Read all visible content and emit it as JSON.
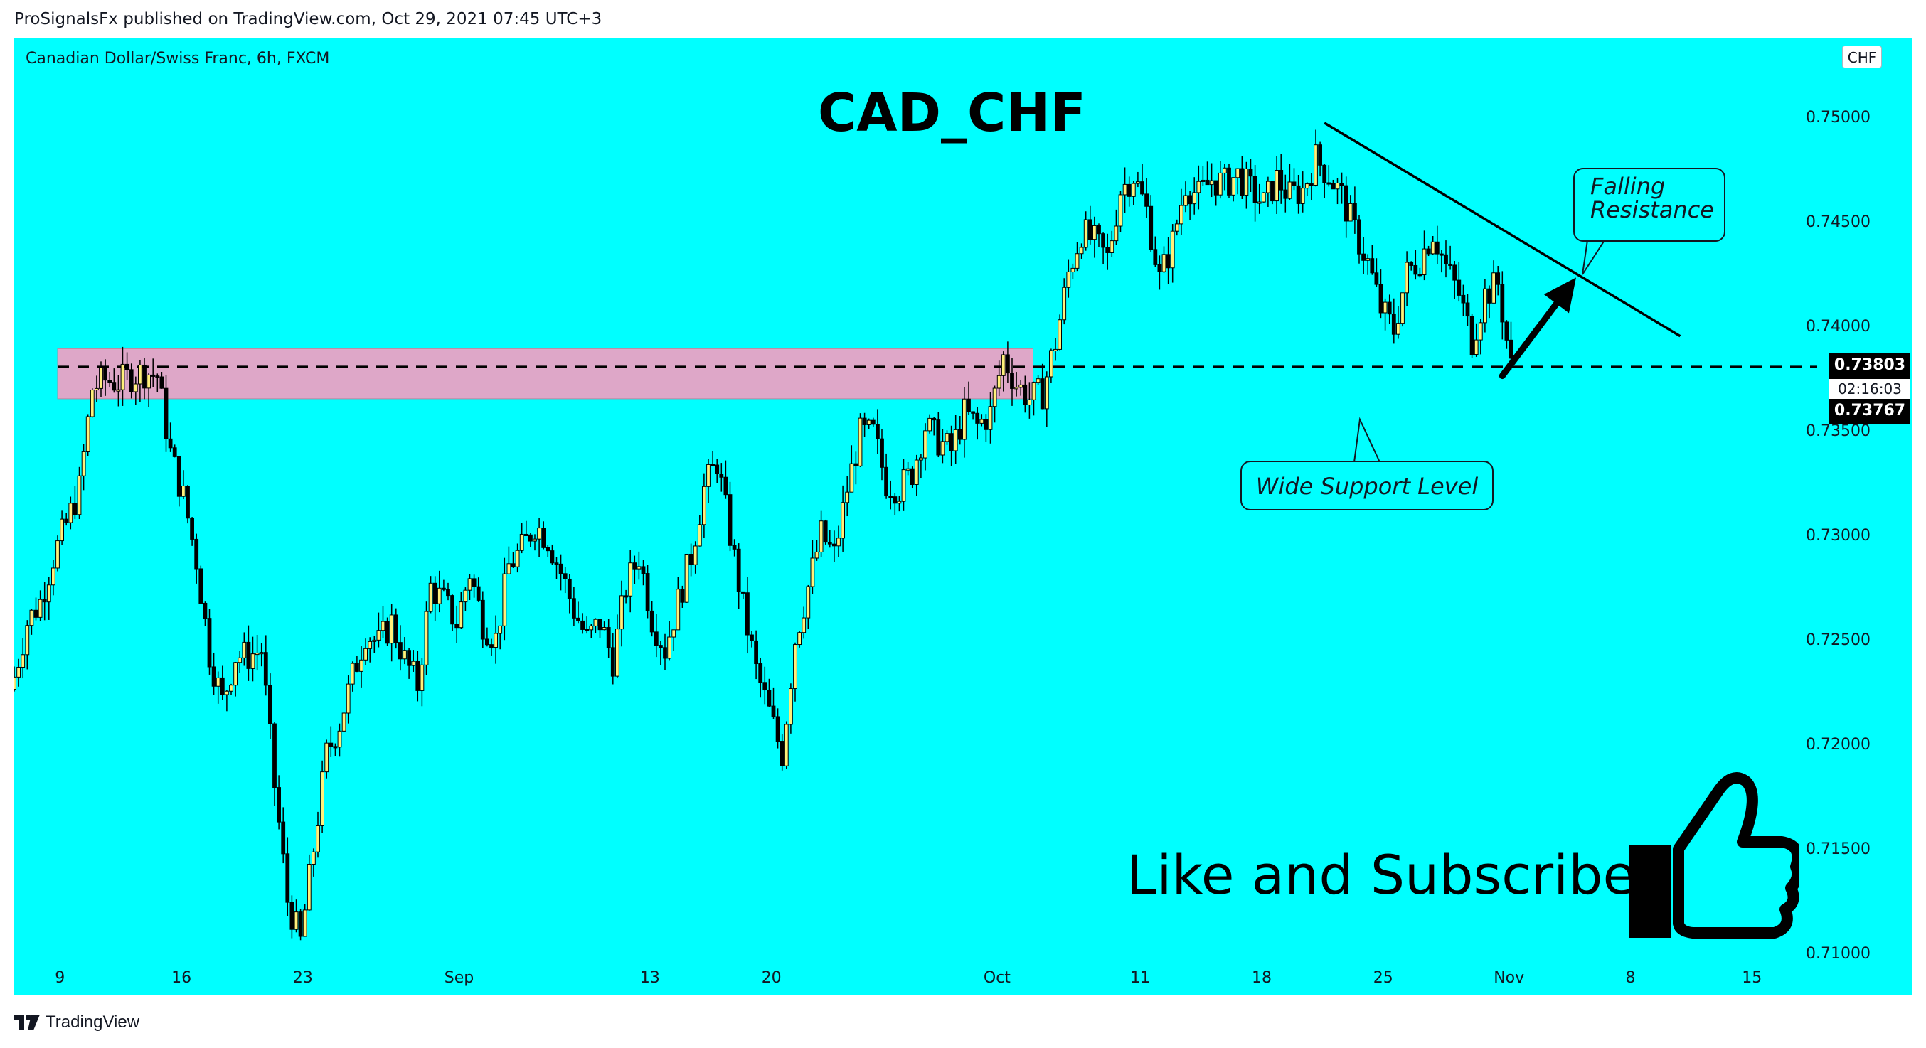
{
  "header": {
    "published": "ProSignalsFx published on TradingView.com, Oct 29, 2021 07:45 UTC+3"
  },
  "chart_header": {
    "symbol": "Canadian Dollar/Swiss Franc, 6h, FXCM",
    "currency": "CHF"
  },
  "annotations": {
    "title": "CAD_CHF",
    "falling_resistance_line1": "Falling",
    "falling_resistance_line2": "Resistance",
    "wide_support": "Wide Support Level",
    "like_subscribe": "Like and Subscribe"
  },
  "price_tags": {
    "last_price": "0.73803",
    "countdown": "02:16:03",
    "other_price": "0.73767"
  },
  "footer": {
    "brand": "TradingView"
  },
  "colors": {
    "background": "#00ffff",
    "bull_candle": "#fff07a",
    "bear_candle": "#000000",
    "wick": "#000000",
    "support_zone": "#dea7c8"
  },
  "chart_data": {
    "type": "candlestick",
    "title": "CAD_CHF",
    "symbol": "Canadian Dollar/Swiss Franc, 6h, FXCM",
    "y_axis": {
      "ticks": [
        "0.75000",
        "0.74500",
        "0.74000",
        "0.73500",
        "0.73000",
        "0.72500",
        "0.72000",
        "0.71500",
        "0.71000"
      ],
      "range": [
        0.7095,
        0.7505
      ]
    },
    "x_axis": {
      "ticks": [
        {
          "label": "9",
          "bar": 3
        },
        {
          "label": "16",
          "bar": 31
        },
        {
          "label": "23",
          "bar": 59
        },
        {
          "label": "Sep",
          "bar": 95
        },
        {
          "label": "13",
          "bar": 139
        },
        {
          "label": "20",
          "bar": 167
        },
        {
          "label": "Oct",
          "bar": 219
        },
        {
          "label": "11",
          "bar": 252
        },
        {
          "label": "18",
          "bar": 280
        },
        {
          "label": "25",
          "bar": 308
        },
        {
          "label": "Nov",
          "bar": 337
        },
        {
          "label": "8",
          "bar": 365
        },
        {
          "label": "15",
          "bar": 393
        }
      ]
    },
    "support_zone": {
      "low": 0.7365,
      "high": 0.7389,
      "label": "Wide Support Level"
    },
    "resistance_line": {
      "from": {
        "bar": 302,
        "price": 0.7497
      },
      "to": {
        "bar": 384,
        "price": 0.7395
      },
      "label": "Falling Resistance"
    },
    "dashed_level": 0.73803,
    "arrow": {
      "from": {
        "bar": 343,
        "price": 0.7376
      },
      "to": {
        "bar": 360,
        "price": 0.7423
      }
    },
    "last_price": 0.73803,
    "close_path": [
      [
        0,
        0.7232
      ],
      [
        3,
        0.7258
      ],
      [
        6,
        0.7268
      ],
      [
        9,
        0.7289
      ],
      [
        12,
        0.7305
      ],
      [
        15,
        0.7322
      ],
      [
        18,
        0.737
      ],
      [
        21,
        0.7374
      ],
      [
        24,
        0.7373
      ],
      [
        27,
        0.7376
      ],
      [
        30,
        0.7378
      ],
      [
        33,
        0.7376
      ],
      [
        36,
        0.7339
      ],
      [
        39,
        0.7318
      ],
      [
        42,
        0.7288
      ],
      [
        45,
        0.7243
      ],
      [
        48,
        0.722
      ],
      [
        51,
        0.7242
      ],
      [
        54,
        0.7242
      ],
      [
        57,
        0.7245
      ],
      [
        60,
        0.718
      ],
      [
        63,
        0.7125
      ],
      [
        66,
        0.7105
      ],
      [
        69,
        0.715
      ],
      [
        72,
        0.7195
      ],
      [
        75,
        0.721
      ],
      [
        78,
        0.7232
      ],
      [
        81,
        0.7253
      ],
      [
        84,
        0.7248
      ],
      [
        87,
        0.7258
      ],
      [
        90,
        0.724
      ],
      [
        93,
        0.7228
      ],
      [
        96,
        0.7275
      ],
      [
        99,
        0.7268
      ],
      [
        102,
        0.7258
      ],
      [
        105,
        0.7282
      ],
      [
        108,
        0.7258
      ],
      [
        111,
        0.725
      ],
      [
        114,
        0.7285
      ],
      [
        117,
        0.7293
      ],
      [
        120,
        0.7305
      ],
      [
        123,
        0.7298
      ],
      [
        126,
        0.7282
      ],
      [
        129,
        0.7264
      ],
      [
        132,
        0.725
      ],
      [
        135,
        0.7258
      ],
      [
        138,
        0.724
      ],
      [
        141,
        0.7275
      ],
      [
        144,
        0.729
      ],
      [
        147,
        0.726
      ],
      [
        150,
        0.7245
      ],
      [
        153,
        0.7268
      ],
      [
        156,
        0.729
      ],
      [
        159,
        0.7322
      ],
      [
        162,
        0.7335
      ],
      [
        165,
        0.73
      ],
      [
        168,
        0.7265
      ],
      [
        171,
        0.7235
      ],
      [
        174,
        0.7215
      ],
      [
        177,
        0.7195
      ],
      [
        180,
        0.725
      ],
      [
        183,
        0.7275
      ],
      [
        186,
        0.73
      ],
      [
        189,
        0.729
      ],
      [
        192,
        0.7322
      ],
      [
        195,
        0.7348
      ],
      [
        198,
        0.7348
      ],
      [
        201,
        0.7325
      ],
      [
        204,
        0.7322
      ],
      [
        207,
        0.733
      ],
      [
        210,
        0.7352
      ],
      [
        213,
        0.7345
      ],
      [
        216,
        0.734
      ],
      [
        219,
        0.7358
      ],
      [
        222,
        0.7352
      ],
      [
        225,
        0.7358
      ],
      [
        228,
        0.7385
      ],
      [
        231,
        0.7372
      ],
      [
        234,
        0.7365
      ],
      [
        237,
        0.7368
      ],
      [
        240,
        0.7392
      ],
      [
        243,
        0.7425
      ],
      [
        246,
        0.7445
      ],
      [
        249,
        0.744
      ],
      [
        252,
        0.7432
      ],
      [
        255,
        0.7465
      ],
      [
        258,
        0.7472
      ],
      [
        261,
        0.7455
      ],
      [
        264,
        0.7422
      ],
      [
        267,
        0.744
      ],
      [
        270,
        0.7468
      ],
      [
        273,
        0.7462
      ],
      [
        276,
        0.747
      ],
      [
        279,
        0.7468
      ],
      [
        282,
        0.7472
      ],
      [
        285,
        0.7465
      ],
      [
        288,
        0.7458
      ],
      [
        291,
        0.747
      ],
      [
        294,
        0.7462
      ],
      [
        297,
        0.7465
      ],
      [
        300,
        0.748
      ],
      [
        303,
        0.7472
      ],
      [
        306,
        0.7462
      ],
      [
        309,
        0.7445
      ],
      [
        312,
        0.743
      ],
      [
        315,
        0.7408
      ],
      [
        318,
        0.7398
      ],
      [
        321,
        0.7425
      ],
      [
        324,
        0.7432
      ],
      [
        327,
        0.7445
      ],
      [
        330,
        0.7428
      ],
      [
        333,
        0.7415
      ],
      [
        336,
        0.7393
      ],
      [
        339,
        0.7415
      ],
      [
        342,
        0.742
      ],
      [
        345,
        0.738
      ]
    ]
  }
}
